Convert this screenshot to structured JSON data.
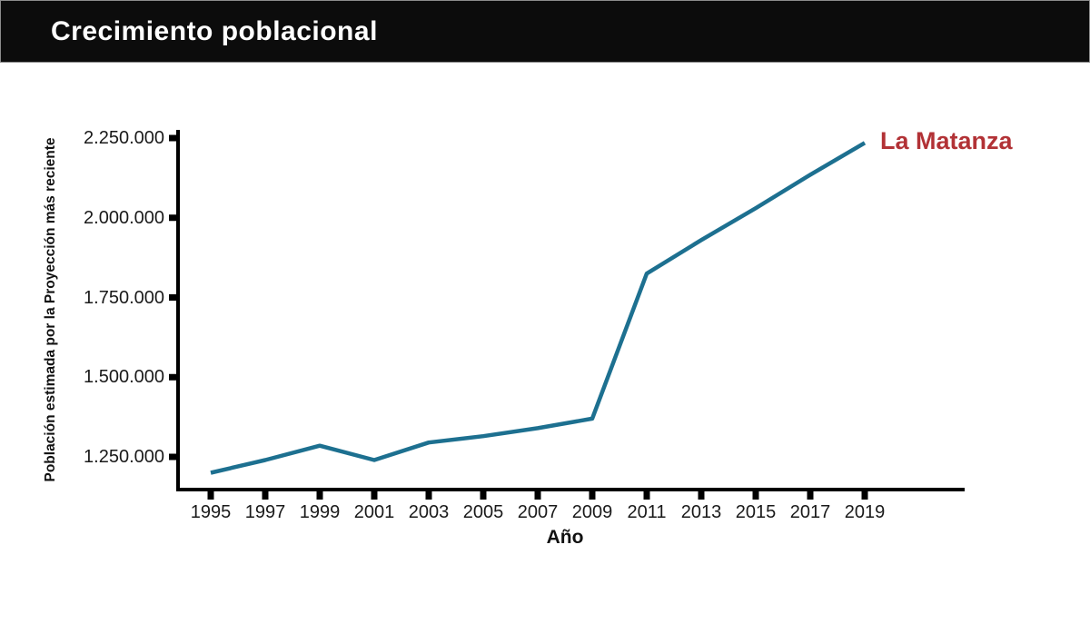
{
  "header": {
    "title": "Crecimiento poblacional",
    "background": "#0c0c0c",
    "text_color": "#ffffff"
  },
  "chart_data": {
    "type": "line",
    "title": "Crecimiento poblacional",
    "xlabel": "Año",
    "ylabel": "Población estimada por la Proyección más reciente",
    "x": [
      1995,
      1997,
      1999,
      2001,
      2003,
      2005,
      2007,
      2009,
      2011,
      2013,
      2015,
      2017,
      2019
    ],
    "series": [
      {
        "name": "La Matanza",
        "color": "#1d7090",
        "values": [
          1200000,
          1240000,
          1285000,
          1240000,
          1295000,
          1315000,
          1340000,
          1370000,
          1825000,
          1930000,
          2030000,
          2135000,
          2235000
        ],
        "end_label_color": "#b23236"
      }
    ],
    "x_ticks": [
      1995,
      1997,
      1999,
      2001,
      2003,
      2005,
      2007,
      2009,
      2011,
      2013,
      2015,
      2017,
      2019
    ],
    "y_ticks": [
      1250000,
      1500000,
      1750000,
      2000000,
      2250000
    ],
    "y_tick_labels": [
      "1.250.000",
      "1.500.000",
      "1.750.000",
      "2.000.000",
      "2.250.000"
    ],
    "ylim": [
      1150000,
      2275000
    ],
    "xlim": [
      1993.8,
      2022.7
    ],
    "grid": false,
    "legend_position": "end-of-line-annotation",
    "axis_color": "#000000",
    "tick_label_color": "#1a1a1a"
  }
}
